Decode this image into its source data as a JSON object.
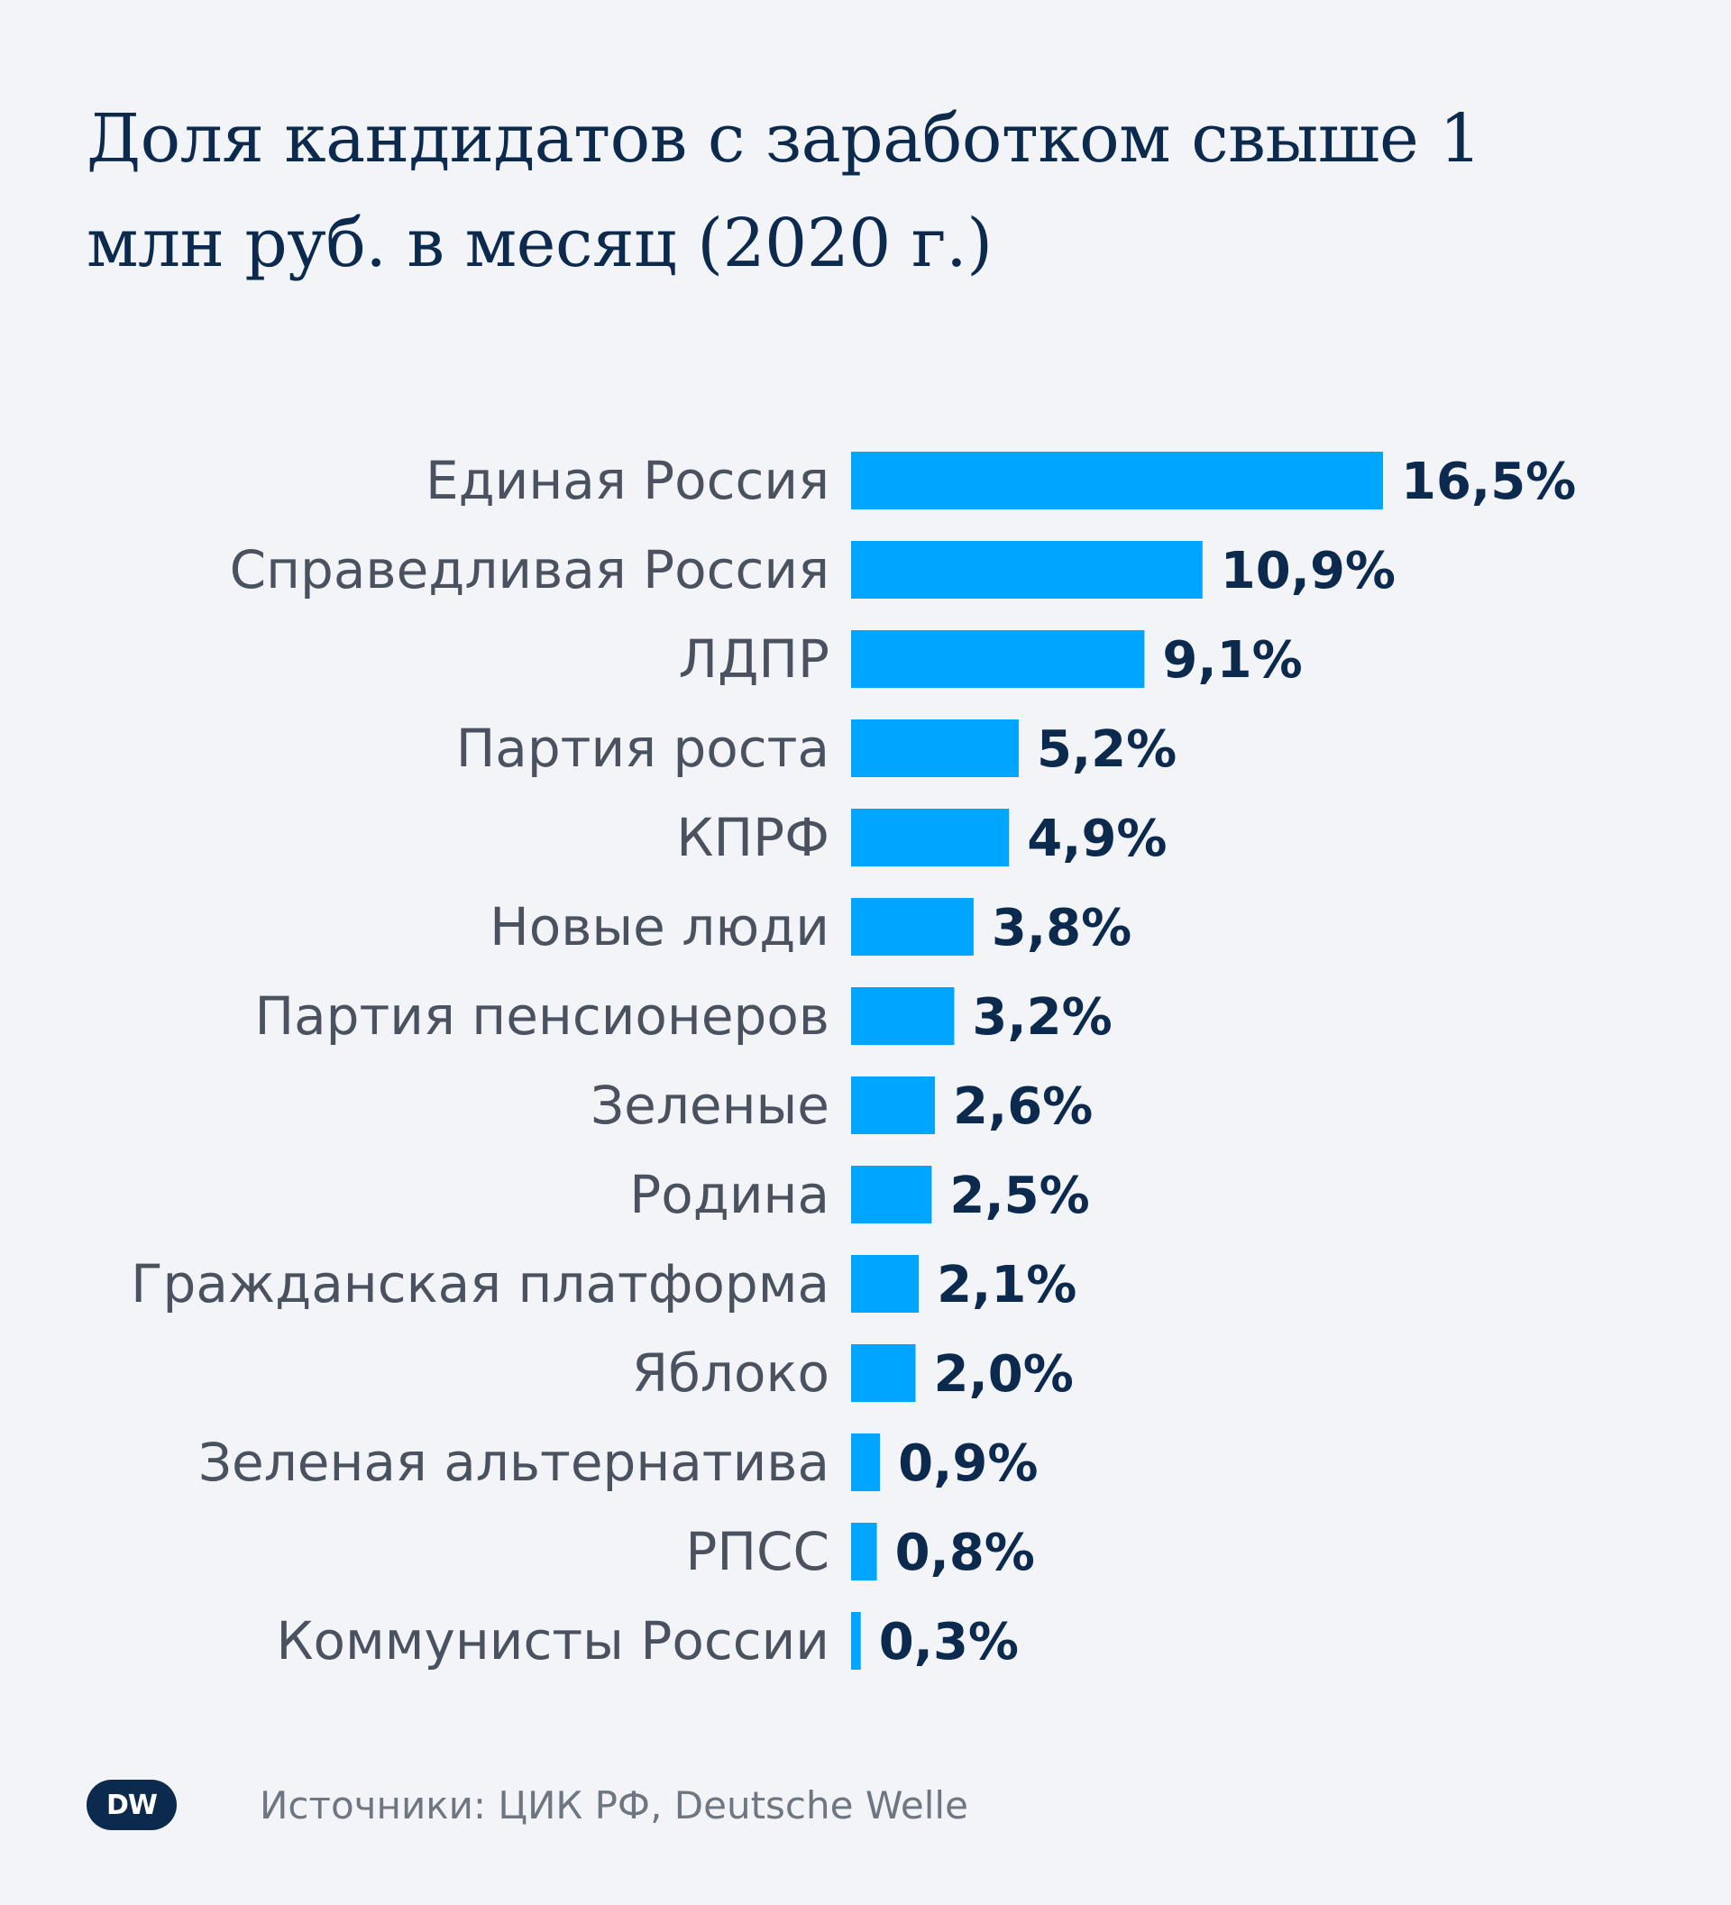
{
  "chart_data": {
    "type": "bar",
    "orientation": "horizontal",
    "title": "Доля кандидатов с заработком свыше 1 млн руб. в месяц (2020 г.)",
    "categories": [
      "Единая Россия",
      "Справедливая Россия",
      "ЛДПР",
      "Партия роста",
      "КПРФ",
      "Новые люди",
      "Партия пенсионеров",
      "Зеленые",
      "Родина",
      "Гражданская платформа",
      "Яблоко",
      "Зеленая альтернатива",
      "РПСС",
      "Коммунисты России"
    ],
    "values": [
      16.5,
      10.9,
      9.1,
      5.2,
      4.9,
      3.8,
      3.2,
      2.6,
      2.5,
      2.1,
      2.0,
      0.9,
      0.8,
      0.3
    ],
    "value_labels": [
      "16,5%",
      "10,9%",
      "9,1%",
      "5,2%",
      "4,9%",
      "3,8%",
      "3,2%",
      "2,6%",
      "2,5%",
      "2,1%",
      "2,0%",
      "0,9%",
      "0,8%",
      "0,3%"
    ],
    "unit": "%",
    "xlim": [
      0,
      16.5
    ],
    "grid": false,
    "legend": "none",
    "bar_color": "#00a5ff"
  },
  "header": {
    "title": "Доля кандидатов с заработком свыше 1 млн руб. в месяц (2020 г.)"
  },
  "footer": {
    "logo_text": "DW",
    "source": "Источники: ЦИК РФ, Deutsche Welle"
  },
  "colors": {
    "background": "#f2f4f7",
    "title": "#0c2a4e",
    "bar": "#00a5ff",
    "label": "#4a5260",
    "value": "#0c2a4e",
    "logo": "#0c2a4e",
    "source": "#6e7682"
  }
}
